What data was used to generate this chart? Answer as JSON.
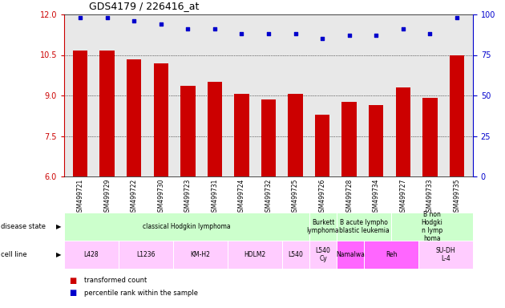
{
  "title": "GDS4179 / 226416_at",
  "samples": [
    "GSM499721",
    "GSM499729",
    "GSM499722",
    "GSM499730",
    "GSM499723",
    "GSM499731",
    "GSM499724",
    "GSM499732",
    "GSM499725",
    "GSM499726",
    "GSM499728",
    "GSM499734",
    "GSM499727",
    "GSM499733",
    "GSM499735"
  ],
  "transformed_count": [
    10.65,
    10.65,
    10.35,
    10.2,
    9.35,
    9.5,
    9.05,
    8.85,
    9.05,
    8.3,
    8.75,
    8.65,
    9.3,
    8.9,
    10.5
  ],
  "percentile_rank": [
    98,
    98,
    96,
    94,
    91,
    91,
    88,
    88,
    88,
    85,
    87,
    87,
    91,
    88,
    98
  ],
  "ylim_left": [
    6,
    12
  ],
  "ylim_right": [
    0,
    100
  ],
  "yticks_left": [
    6,
    7.5,
    9,
    10.5,
    12
  ],
  "yticks_right": [
    0,
    25,
    50,
    75,
    100
  ],
  "bar_color": "#cc0000",
  "dot_color": "#0000cc",
  "grid_color": "#000000",
  "disease_state_groups": [
    {
      "label": "classical Hodgkin lymphoma",
      "start": 0,
      "end": 9,
      "color": "#ccffcc"
    },
    {
      "label": "Burkett\nlymphoma",
      "start": 9,
      "end": 10,
      "color": "#ccffcc"
    },
    {
      "label": "B acute lympho\nblastic leukemia",
      "start": 10,
      "end": 12,
      "color": "#ccffcc"
    },
    {
      "label": "B non\nHodgki\nn lymp\nhoma",
      "start": 12,
      "end": 15,
      "color": "#ccffcc"
    }
  ],
  "cell_line_groups": [
    {
      "label": "L428",
      "start": 0,
      "end": 2,
      "color": "#ffccff"
    },
    {
      "label": "L1236",
      "start": 2,
      "end": 4,
      "color": "#ffccff"
    },
    {
      "label": "KM-H2",
      "start": 4,
      "end": 6,
      "color": "#ffccff"
    },
    {
      "label": "HDLM2",
      "start": 6,
      "end": 8,
      "color": "#ffccff"
    },
    {
      "label": "L540",
      "start": 8,
      "end": 9,
      "color": "#ffccff"
    },
    {
      "label": "L540\nCy",
      "start": 9,
      "end": 10,
      "color": "#ffccff"
    },
    {
      "label": "Namalwa",
      "start": 10,
      "end": 11,
      "color": "#ff66ff"
    },
    {
      "label": "Reh",
      "start": 11,
      "end": 13,
      "color": "#ff66ff"
    },
    {
      "label": "SU-DH\nL-4",
      "start": 13,
      "end": 15,
      "color": "#ffccff"
    }
  ],
  "bg_color": "#ffffff",
  "plot_bg": "#e8e8e8"
}
